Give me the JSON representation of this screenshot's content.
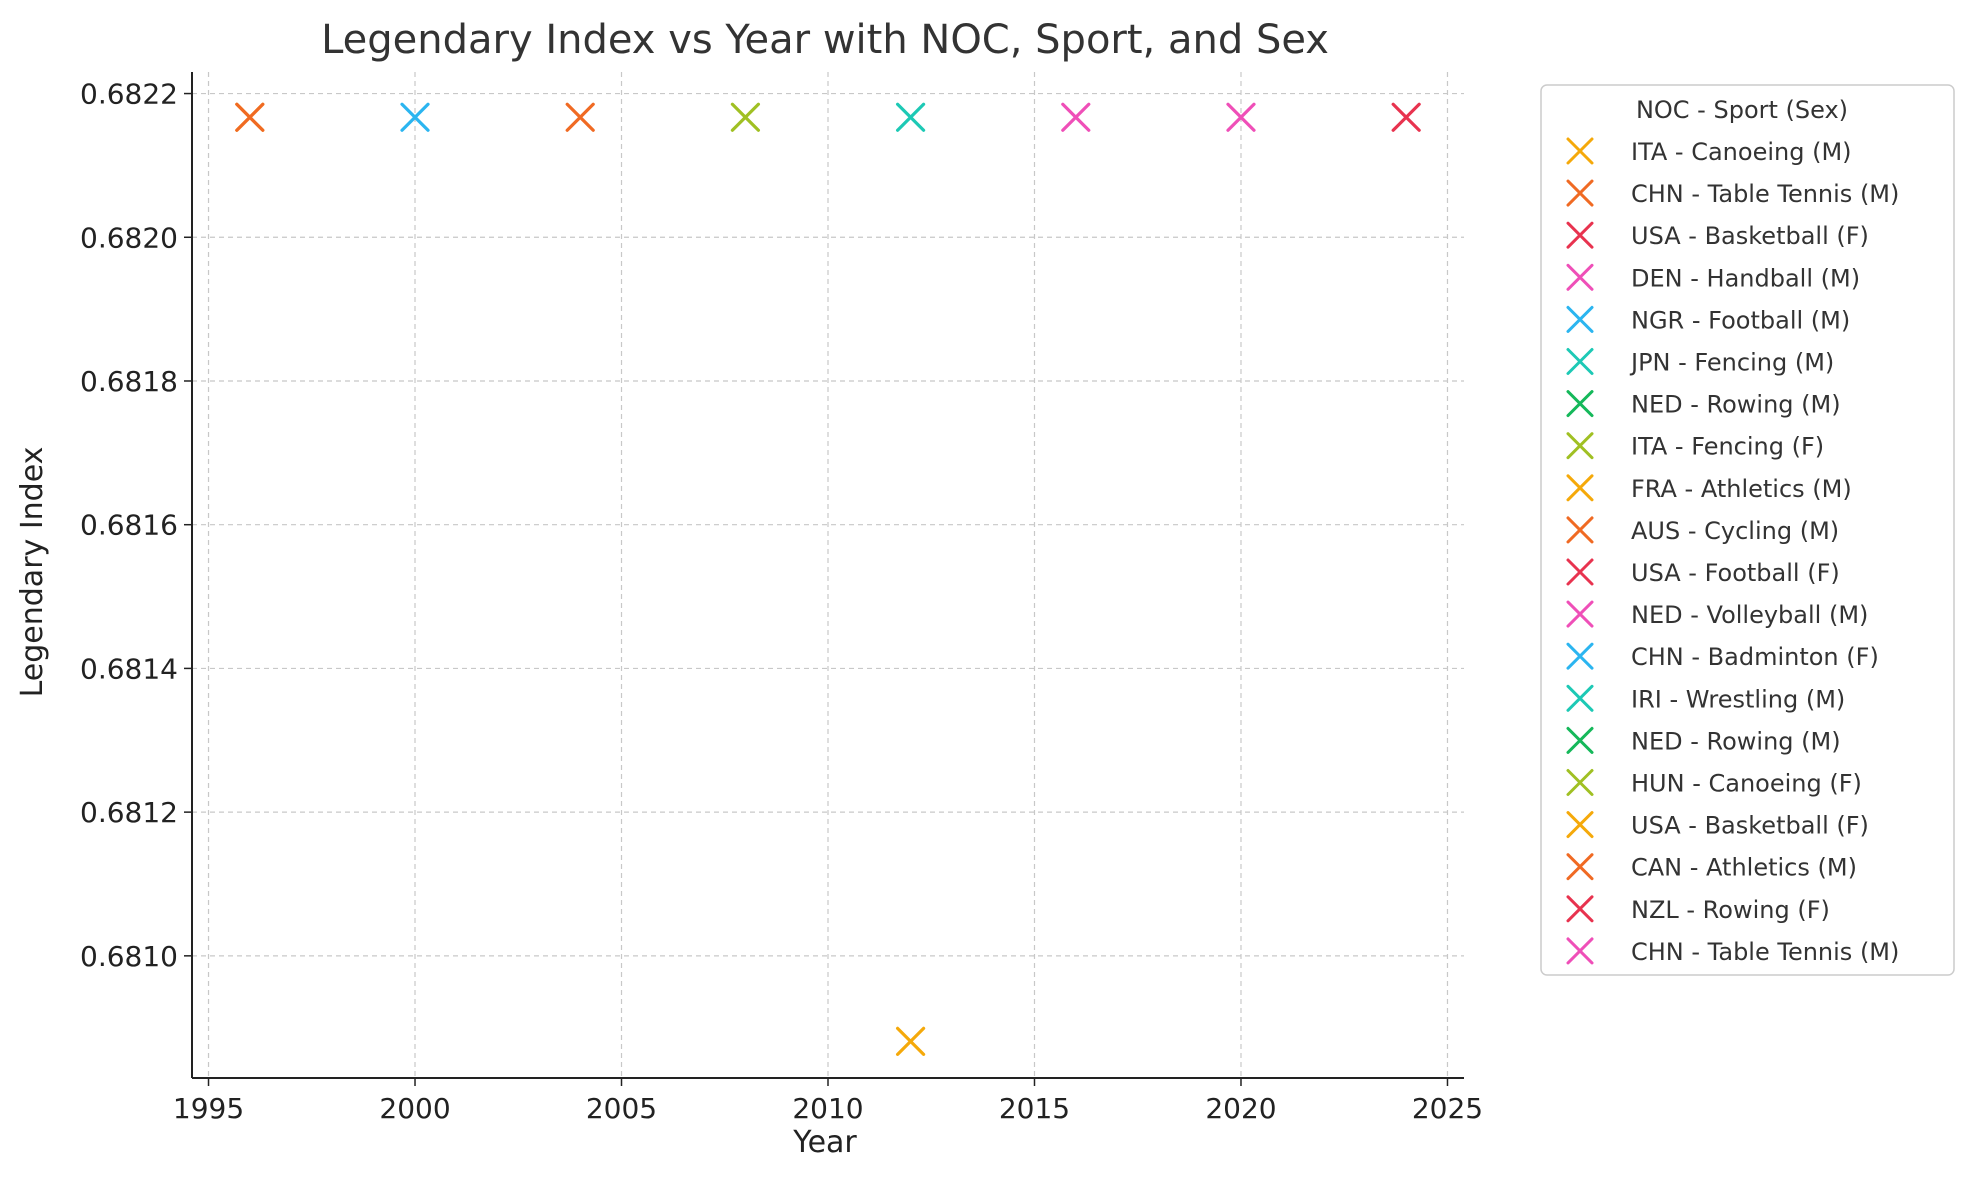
{
  "chart_data": {
    "type": "scatter",
    "title": "Legendary Index vs Year with NOC, Sport, and Sex",
    "xlabel": "Year",
    "ylabel": "Legendary Index",
    "xlim": [
      1994.6,
      2025.4
    ],
    "ylim": [
      0.68083,
      0.68223
    ],
    "x_ticks": [
      1995,
      2000,
      2005,
      2010,
      2015,
      2020,
      2025
    ],
    "x_tick_labels": [
      "1995",
      "2000",
      "2005",
      "2010",
      "2015",
      "2020",
      "2025"
    ],
    "y_ticks": [
      0.681,
      0.6812,
      0.6814,
      0.6816,
      0.6818,
      0.682,
      0.6822
    ],
    "y_tick_labels": [
      "0.6810",
      "0.6812",
      "0.6814",
      "0.6816",
      "0.6818",
      "0.6820",
      "0.6822"
    ],
    "grid": true,
    "marker": "x",
    "legend": {
      "title": "NOC - Sport (Sex)",
      "placement": "outside-right",
      "entries": [
        {
          "label": "ITA - Canoeing (M)",
          "color": "#F5A90A"
        },
        {
          "label": "CHN - Table Tennis (M)",
          "color": "#F06A23"
        },
        {
          "label": "USA - Basketball (F)",
          "color": "#E8334F"
        },
        {
          "label": "DEN - Handball (M)",
          "color": "#EF4FB8"
        },
        {
          "label": "NGR - Football (M)",
          "color": "#2BB5F0"
        },
        {
          "label": "JPN - Fencing (M)",
          "color": "#1DC9B5"
        },
        {
          "label": "NED - Rowing (M)",
          "color": "#15B85A"
        },
        {
          "label": "ITA - Fencing (F)",
          "color": "#A0C023"
        },
        {
          "label": "FRA - Athletics (M)",
          "color": "#F5A90A"
        },
        {
          "label": "AUS - Cycling (M)",
          "color": "#F06A23"
        },
        {
          "label": "USA - Football (F)",
          "color": "#E8334F"
        },
        {
          "label": "NED - Volleyball (M)",
          "color": "#EF4FB8"
        },
        {
          "label": "CHN - Badminton (F)",
          "color": "#2BB5F0"
        },
        {
          "label": "IRI - Wrestling (M)",
          "color": "#1DC9B5"
        },
        {
          "label": "NED - Rowing (M)",
          "color": "#15B85A"
        },
        {
          "label": "HUN - Canoeing (F)",
          "color": "#A0C023"
        },
        {
          "label": "USA - Basketball (F)",
          "color": "#F5A90A"
        },
        {
          "label": "CAN - Athletics (M)",
          "color": "#F06A23"
        },
        {
          "label": "NZL - Rowing (F)",
          "color": "#E8334F"
        },
        {
          "label": "CHN - Table Tennis (M)",
          "color": "#EF4FB8"
        }
      ]
    },
    "points": [
      {
        "x": 1996,
        "y": 0.682167,
        "color": "#F5A90A"
      },
      {
        "x": 1996,
        "y": 0.682167,
        "color": "#F06A23"
      },
      {
        "x": 2000,
        "y": 0.682167,
        "color": "#2BB5F0"
      },
      {
        "x": 2004,
        "y": 0.682167,
        "color": "#F06A23"
      },
      {
        "x": 2008,
        "y": 0.682167,
        "color": "#A0C023"
      },
      {
        "x": 2012,
        "y": 0.682167,
        "color": "#1DC9B5"
      },
      {
        "x": 2012,
        "y": 0.680881,
        "color": "#F5A90A"
      },
      {
        "x": 2016,
        "y": 0.682167,
        "color": "#EF4FB8"
      },
      {
        "x": 2020,
        "y": 0.682167,
        "color": "#EF4FB8"
      },
      {
        "x": 2024,
        "y": 0.682167,
        "color": "#E8334F"
      }
    ]
  }
}
